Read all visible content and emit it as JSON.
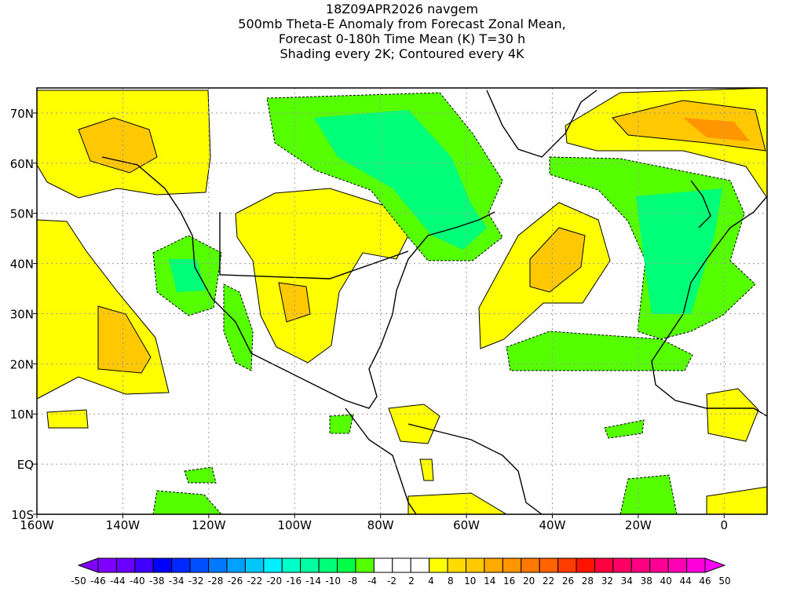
{
  "title_lines": [
    "18Z09APR2026 navgem",
    "500mb Theta-E Anomaly from Forecast Zonal Mean,",
    "Forecast 0-180h Time Mean (K) T=30 h",
    "Shading every 2K; Contoured every 4K"
  ],
  "x_axis": {
    "labels": [
      "160W",
      "140W",
      "120W",
      "100W",
      "80W",
      "60W",
      "40W",
      "20W",
      "0"
    ],
    "values": [
      -160,
      -140,
      -120,
      -100,
      -80,
      -60,
      -40,
      -20,
      0
    ],
    "range": [
      -160,
      10
    ]
  },
  "y_axis": {
    "labels": [
      "10S",
      "EQ",
      "10N",
      "20N",
      "30N",
      "40N",
      "50N",
      "60N",
      "70N"
    ],
    "values": [
      -10,
      0,
      10,
      20,
      30,
      40,
      50,
      60,
      70
    ],
    "range": [
      -10,
      75
    ]
  },
  "colorbar": {
    "labels": [
      "-50",
      "-46",
      "-44",
      "-40",
      "-38",
      "-34",
      "-32",
      "-28",
      "-26",
      "-22",
      "-20",
      "-16",
      "-14",
      "-10",
      "-8",
      "-4",
      "-2",
      "2",
      "4",
      "8",
      "10",
      "14",
      "16",
      "20",
      "22",
      "26",
      "28",
      "32",
      "34",
      "38",
      "40",
      "44",
      "46",
      "50"
    ],
    "colors": [
      "#8000ff",
      "#6a00ff",
      "#4000ff",
      "#0000ff",
      "#0028ff",
      "#0050ff",
      "#0078ff",
      "#00a0ff",
      "#00c8ff",
      "#00f0ff",
      "#00ffc8",
      "#00ffa0",
      "#00ff78",
      "#00ff46",
      "#55ff00",
      "#ffffff",
      "#ffffff",
      "#ffffff",
      "#ffff00",
      "#ffdc00",
      "#ffc800",
      "#ffaa00",
      "#ff9600",
      "#ff7800",
      "#ff6400",
      "#ff3c00",
      "#ff1400",
      "#ff0040",
      "#ff0064",
      "#ff0080",
      "#ff0096",
      "#ff00b4",
      "#ff00dc"
    ],
    "under_color": "#8000ff",
    "over_color": "#ff00ff"
  }
}
